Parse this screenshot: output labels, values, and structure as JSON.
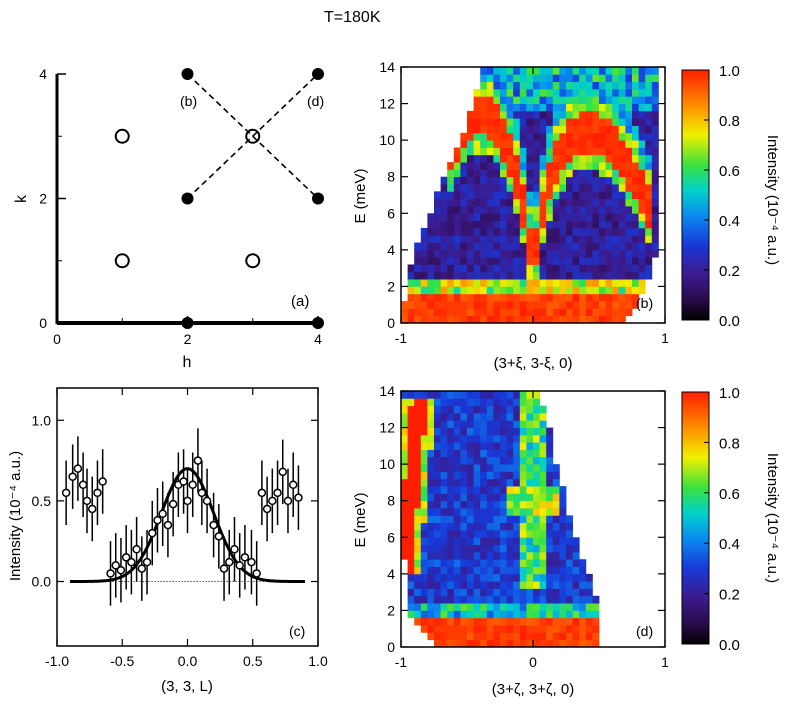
{
  "figure_title": "T=180K",
  "colors": {
    "axis": "#000000",
    "fit": "#000000",
    "colormap": [
      "#000000",
      "#2a0a4a",
      "#3c1a8c",
      "#1838d8",
      "#0a8cf0",
      "#00d2c8",
      "#3ce13c",
      "#f0f000",
      "#ff8c00",
      "#ff1e00"
    ]
  },
  "chart_data": [
    {
      "panel": "(a)",
      "type": "scatter",
      "title": "",
      "xlabel": "h",
      "ylabel": "k",
      "xlim": [
        0,
        4
      ],
      "ylim": [
        0,
        4
      ],
      "xticks": [
        "0",
        "2",
        "4"
      ],
      "yticks": [
        "0",
        "2",
        "4"
      ],
      "filled_points": [
        [
          2,
          4
        ],
        [
          4,
          4
        ],
        [
          2,
          2
        ],
        [
          4,
          2
        ],
        [
          2,
          0
        ],
        [
          4,
          0
        ]
      ],
      "open_points": [
        [
          1,
          3
        ],
        [
          3,
          3
        ],
        [
          1,
          1
        ],
        [
          3,
          1
        ]
      ],
      "dashed_cuts": [
        {
          "label": "(b)",
          "from": [
            2,
            4
          ],
          "to": [
            4,
            2
          ]
        },
        {
          "label": "(d)",
          "from": [
            2,
            2
          ],
          "to": [
            4,
            4
          ]
        }
      ],
      "thick_line": {
        "from": [
          0,
          0
        ],
        "to": [
          4,
          0
        ]
      },
      "cut_labels": [
        "(b)",
        "(d)"
      ]
    },
    {
      "panel": "(b)",
      "type": "heatmap",
      "xlabel": "(3+ξ, 3-ξ, 0)",
      "ylabel": "E (meV)",
      "xlim": [
        -1,
        1
      ],
      "ylim": [
        0,
        14
      ],
      "xticks": [
        "-1",
        "0",
        "1"
      ],
      "yticks": [
        "0",
        "2",
        "4",
        "6",
        "8",
        "10",
        "12",
        "14"
      ],
      "colorbar": {
        "label": "Intensity (10⁻⁴ a.u.)",
        "range": [
          0.0,
          1.0
        ],
        "ticks": [
          "0.0",
          "0.2",
          "0.4",
          "0.6",
          "0.8",
          "1.0"
        ]
      },
      "features": {
        "dispersion_branches": [
          {
            "x": [
              -0.65,
              -0.5,
              -0.4,
              -0.3,
              -0.2,
              -0.1,
              -0.05,
              0.0
            ],
            "E": [
              9.0,
              11.0,
              11.5,
              11.0,
              9.8,
              7.5,
              5.5,
              3.0
            ]
          },
          {
            "x": [
              0.0,
              0.05,
              0.15,
              0.3,
              0.45,
              0.6,
              0.75,
              0.9
            ],
            "E": [
              3.0,
              5.5,
              8.5,
              10.2,
              10.5,
              9.8,
              8.2,
              6.0
            ]
          }
        ],
        "elastic_line_E": 1.0,
        "coverage": {
          "E": [
            0,
            2,
            4,
            6,
            8,
            10,
            12,
            13.6
          ],
          "x_min": [
            -1.0,
            -0.95,
            -0.9,
            -0.78,
            -0.68,
            -0.55,
            -0.45,
            -0.4
          ],
          "x_max": [
            0.7,
            0.85,
            0.95,
            0.95,
            0.95,
            0.95,
            0.95,
            0.95
          ]
        }
      }
    },
    {
      "panel": "(c)",
      "type": "scatter",
      "xlabel": "(3, 3, L)",
      "ylabel": "Intensity (10⁻⁴ a.u.)",
      "xlim": [
        -1.0,
        1.0
      ],
      "ylim": [
        -0.4,
        1.2
      ],
      "xticks": [
        "-1.0",
        "-0.5",
        "0.0",
        "0.5",
        "1.0"
      ],
      "yticks": [
        "0.0",
        "0.5",
        "1.0"
      ],
      "series": [
        {
          "name": "data",
          "x": [
            -0.93,
            -0.88,
            -0.84,
            -0.8,
            -0.77,
            -0.73,
            -0.69,
            -0.65,
            -0.59,
            -0.55,
            -0.51,
            -0.47,
            -0.43,
            -0.39,
            -0.35,
            -0.31,
            -0.27,
            -0.23,
            -0.19,
            -0.15,
            -0.11,
            -0.07,
            -0.03,
            0.0,
            0.04,
            0.08,
            0.11,
            0.15,
            0.2,
            0.24,
            0.28,
            0.32,
            0.36,
            0.4,
            0.44,
            0.49,
            0.53,
            0.57,
            0.61,
            0.65,
            0.69,
            0.73,
            0.77,
            0.81,
            0.85
          ],
          "y": [
            0.55,
            0.65,
            0.7,
            0.6,
            0.5,
            0.45,
            0.55,
            0.62,
            0.05,
            0.1,
            0.07,
            0.15,
            0.12,
            0.2,
            0.08,
            0.12,
            0.3,
            0.38,
            0.42,
            0.35,
            0.48,
            0.6,
            0.62,
            0.5,
            0.6,
            0.75,
            0.55,
            0.5,
            0.35,
            0.28,
            0.08,
            0.12,
            0.2,
            0.1,
            0.15,
            0.12,
            0.05,
            0.55,
            0.45,
            0.5,
            0.55,
            0.68,
            0.5,
            0.6,
            0.52
          ],
          "yerr": 0.2
        },
        {
          "name": "gaussian fit",
          "amplitude": 0.7,
          "center": 0.0,
          "sigma": 0.2
        }
      ],
      "baseline": {
        "y": 0.0,
        "style": "dotted"
      }
    },
    {
      "panel": "(d)",
      "type": "heatmap",
      "xlabel": "(3+ζ, 3+ζ, 0)",
      "ylabel": "E (meV)",
      "xlim": [
        -1,
        1
      ],
      "ylim": [
        0,
        14
      ],
      "xticks": [
        "-1",
        "0",
        "1"
      ],
      "yticks": [
        "0",
        "2",
        "4",
        "6",
        "8",
        "10",
        "12",
        "14"
      ],
      "colorbar": {
        "label": "Intensity (10⁻⁴ a.u.)",
        "range": [
          0.0,
          1.0
        ],
        "ticks": [
          "0.0",
          "0.2",
          "0.4",
          "0.6",
          "0.8",
          "1.0"
        ]
      },
      "features": {
        "steep_branch": {
          "E": [
            4.0,
            13.5
          ],
          "x": [
            -0.98,
            -0.86
          ]
        },
        "flat_feature_x": 0.0,
        "elastic_line_E": 1.0,
        "coverage": {
          "E": [
            0,
            2,
            4,
            6,
            8,
            10,
            12,
            14
          ],
          "x_min": [
            -0.75,
            -0.95,
            -0.97,
            -0.98,
            -0.98,
            -0.98,
            -0.98,
            -0.98
          ],
          "x_max": [
            0.52,
            0.5,
            0.42,
            0.32,
            0.25,
            0.18,
            0.12,
            0.05
          ]
        }
      }
    }
  ]
}
